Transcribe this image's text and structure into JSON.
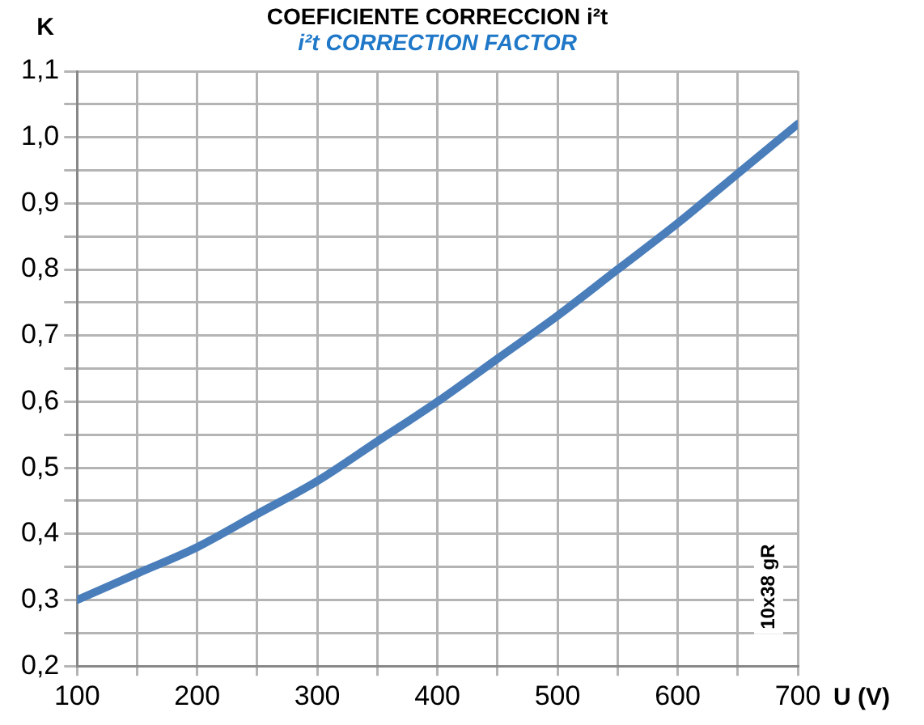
{
  "chart_data": {
    "type": "line",
    "title": "COEFICIENTE CORRECCION i²t",
    "subtitle": "i²t CORRECTION FACTOR",
    "ylabel": "K",
    "xlabel": "U (V)",
    "annotations": [
      "10x38 gR"
    ],
    "x": [
      100,
      150,
      200,
      250,
      300,
      350,
      400,
      450,
      500,
      550,
      600,
      650,
      700
    ],
    "series": [
      {
        "color": "#4a7ebb",
        "values": [
          0.3,
          0.34,
          0.38,
          0.43,
          0.48,
          0.54,
          0.6,
          0.665,
          0.73,
          0.8,
          0.87,
          0.945,
          1.02
        ]
      }
    ],
    "xlim": [
      100,
      700
    ],
    "ylim": [
      0.2,
      1.1
    ],
    "xticks": [
      100,
      {
        "value": 150,
        "label": null
      },
      200,
      {
        "value": 250,
        "label": null
      },
      300,
      {
        "value": 350,
        "label": null
      },
      400,
      {
        "value": 450,
        "label": null
      },
      500,
      {
        "value": 550,
        "label": null
      },
      600,
      {
        "value": 650,
        "label": null
      },
      700
    ],
    "yticks": [
      {
        "value": 0.2,
        "label": "0,2"
      },
      {
        "value": 0.25,
        "label": null
      },
      {
        "value": 0.3,
        "label": "0,3"
      },
      {
        "value": 0.35,
        "label": null
      },
      {
        "value": 0.4,
        "label": "0,4"
      },
      {
        "value": 0.45,
        "label": null
      },
      {
        "value": 0.5,
        "label": "0,5"
      },
      {
        "value": 0.55,
        "label": null
      },
      {
        "value": 0.6,
        "label": "0,6"
      },
      {
        "value": 0.65,
        "label": null
      },
      {
        "value": 0.7,
        "label": "0,7"
      },
      {
        "value": 0.75,
        "label": null
      },
      {
        "value": 0.8,
        "label": "0,8"
      },
      {
        "value": 0.85,
        "label": null
      },
      {
        "value": 0.9,
        "label": "0,9"
      },
      {
        "value": 0.95,
        "label": null
      },
      {
        "value": 1.0,
        "label": "1,0"
      },
      {
        "value": 1.05,
        "label": null
      },
      {
        "value": 1.1,
        "label": "1,1"
      }
    ],
    "grid": true,
    "legend": false,
    "marker": "none",
    "line_style": "solid"
  }
}
